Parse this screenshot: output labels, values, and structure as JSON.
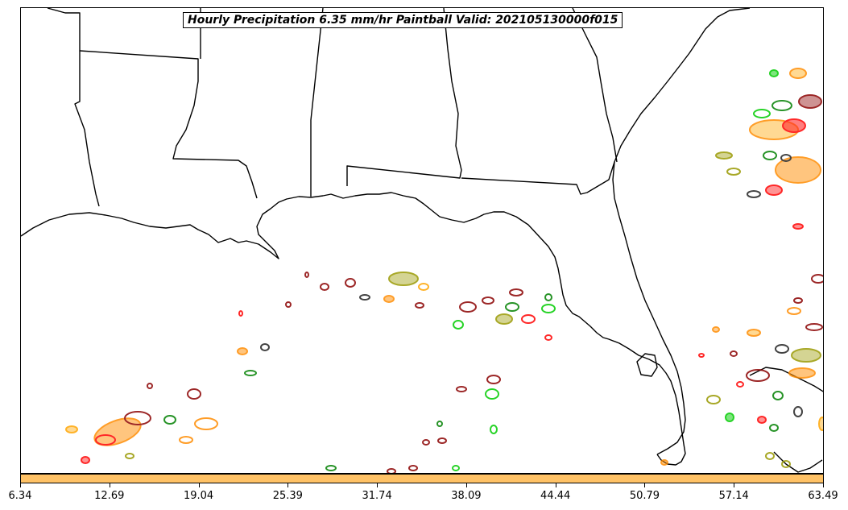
{
  "title": "Hourly Precipitation 6.35 mm/hr Paintball Valid: 202105130000f015",
  "colorbar": {
    "fill_color": "#ffc266",
    "ticks": [
      "6.34",
      "12.69",
      "19.04",
      "25.39",
      "31.74",
      "38.09",
      "44.44",
      "50.79",
      "57.14",
      "63.49"
    ]
  },
  "map": {
    "region": "Gulf of Mexico / Southeastern US",
    "border_color": "#000000",
    "paintball_colors": [
      "#ff0000",
      "#ff8c00",
      "#008000",
      "#00cc00",
      "#8b0000",
      "#999900",
      "#222222",
      "#ffa500"
    ]
  }
}
